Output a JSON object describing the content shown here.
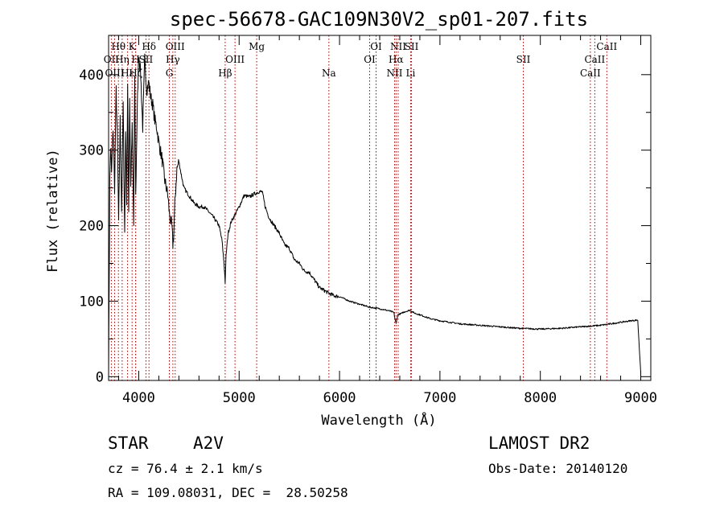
{
  "chart_data": {
    "type": "line",
    "title": "spec-56678-GAC109N30V2_sp01-207.fits",
    "xlabel": "Wavelength (Å)",
    "ylabel": "Flux (relative)",
    "xlim": [
      3700,
      9100
    ],
    "ylim": [
      -5,
      452
    ],
    "x_ticks": [
      4000,
      5000,
      6000,
      7000,
      8000,
      9000
    ],
    "y_ticks": [
      0,
      100,
      200,
      300,
      400
    ],
    "grid": false,
    "line_color": "#000000",
    "marker_color": "#a00000",
    "series": [
      {
        "x": [
          3700,
          3705,
          3712,
          3720,
          3730,
          3745,
          3760,
          3775,
          3790,
          3800,
          3815,
          3830,
          3845,
          3860,
          3870,
          3880,
          3890,
          3900,
          3910,
          3920,
          3935,
          3950,
          3960,
          3970,
          3985,
          4000,
          4020,
          4040,
          4060,
          4080,
          4100,
          4120,
          4140,
          4160,
          4180,
          4200,
          4230,
          4260,
          4290,
          4310,
          4330,
          4340,
          4350,
          4360,
          4380,
          4400,
          4420,
          4450,
          4500,
          4550,
          4600,
          4650,
          4700,
          4750,
          4800,
          4830,
          4850,
          4861,
          4870,
          4890,
          4920,
          4960,
          5000,
          5050,
          5100,
          5150,
          5200,
          5230,
          5260,
          5300,
          5350,
          5400,
          5450,
          5500,
          5550,
          5600,
          5650,
          5700,
          5750,
          5800,
          5850,
          5900,
          5950,
          6000,
          6100,
          6200,
          6300,
          6400,
          6500,
          6540,
          6563,
          6580,
          6620,
          6650,
          6700,
          6750,
          6800,
          6900,
          7000,
          7200,
          7400,
          7600,
          7800,
          8000,
          8200,
          8400,
          8500,
          8600,
          8700,
          8800,
          8900,
          8970,
          9000
        ],
        "y": [
          5,
          110,
          260,
          305,
          270,
          330,
          250,
          380,
          300,
          200,
          340,
          220,
          360,
          190,
          330,
          230,
          380,
          220,
          370,
          250,
          330,
          200,
          400,
          240,
          350,
          430,
          400,
          330,
          420,
          380,
          390,
          370,
          360,
          340,
          330,
          310,
          290,
          260,
          240,
          210,
          200,
          175,
          190,
          230,
          275,
          285,
          270,
          250,
          240,
          230,
          225,
          225,
          218,
          210,
          200,
          180,
          150,
          125,
          160,
          190,
          205,
          215,
          225,
          240,
          238,
          242,
          245,
          245,
          225,
          210,
          200,
          190,
          175,
          170,
          155,
          150,
          140,
          138,
          128,
          118,
          114,
          110,
          107,
          106,
          100,
          96,
          92,
          90,
          87,
          85,
          70,
          82,
          84,
          86,
          88,
          84,
          82,
          77,
          74,
          70,
          68,
          66,
          64,
          63,
          64,
          66,
          67,
          68,
          70,
          72,
          74,
          75,
          5
        ]
      }
    ],
    "lines": [
      {
        "name": "Hθ",
        "wl": 3798,
        "row": 1
      },
      {
        "name": "OII",
        "wl": 3727,
        "row": 2
      },
      {
        "name": "OIII",
        "wl": 3760,
        "row": 3
      },
      {
        "name": "Hη",
        "wl": 3835,
        "row": 2
      },
      {
        "name": "K",
        "wl": 3934,
        "row": 1
      },
      {
        "name": "Hε",
        "wl": 3889,
        "row": 3
      },
      {
        "name": "H",
        "wl": 3969,
        "row": 2
      },
      {
        "name": "Hζ",
        "wl": 3970,
        "row": 3
      },
      {
        "name": "Hδ",
        "wl": 4102,
        "row": 1
      },
      {
        "name": "SII",
        "wl": 4072,
        "row": 2
      },
      {
        "name": "OIII",
        "wl": 4363,
        "row": 1
      },
      {
        "name": "Hγ",
        "wl": 4340,
        "row": 2
      },
      {
        "name": "G",
        "wl": 4305,
        "row": 3
      },
      {
        "name": "Mg",
        "wl": 5175,
        "row": 1
      },
      {
        "name": "OIII",
        "wl": 4959,
        "row": 2
      },
      {
        "name": "Hβ",
        "wl": 4861,
        "row": 3
      },
      {
        "name": "Na",
        "wl": 5894,
        "row": 3
      },
      {
        "name": "OI",
        "wl": 6364,
        "row": 1
      },
      {
        "name": "OI",
        "wl": 6300,
        "row": 2
      },
      {
        "name": "NII",
        "wl": 6584,
        "row": 1
      },
      {
        "name": "SII",
        "wl": 6717,
        "row": 1
      },
      {
        "name": "Hα",
        "wl": 6563,
        "row": 2
      },
      {
        "name": "NII",
        "wl": 6548,
        "row": 3
      },
      {
        "name": "Li",
        "wl": 6708,
        "row": 3
      },
      {
        "name": "SII",
        "wl": 7830,
        "row": 2
      },
      {
        "name": "CaII",
        "wl": 8662,
        "row": 1
      },
      {
        "name": "CaII",
        "wl": 8542,
        "row": 2
      },
      {
        "name": "CaII",
        "wl": 8498,
        "row": 3
      }
    ]
  },
  "info": {
    "object_type": "STAR",
    "subclass": "A2V",
    "survey": "LAMOST DR2",
    "cz": "cz = 76.4 ± 2.1 km/s",
    "obs_date": "Obs-Date: 20140120",
    "coords": "RA = 109.08031, DEC =  28.50258"
  }
}
